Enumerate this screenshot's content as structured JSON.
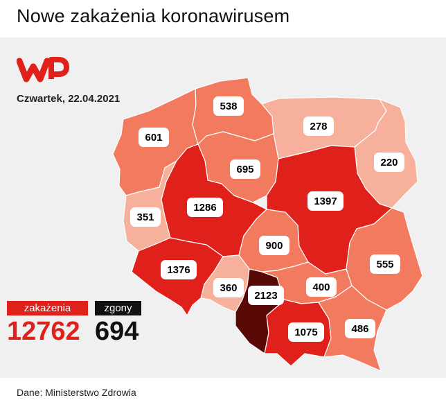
{
  "header": {
    "title": "Nowe zakażenia koronawirusem"
  },
  "info": {
    "date": "Czwartek, 22.04.2021"
  },
  "brand": {
    "accent": "#e0201b"
  },
  "legend": {
    "color_scale": [
      "#f7b09c",
      "#f4775c",
      "#e0201b",
      "#5a0a06"
    ]
  },
  "regions": [
    {
      "id": "zachodniopomorskie",
      "value": "601",
      "color": "#f27a5f"
    },
    {
      "id": "pomorskie",
      "value": "538",
      "color": "#f27a5f"
    },
    {
      "id": "warminsko-mazurskie",
      "value": "278",
      "color": "#f7b09c"
    },
    {
      "id": "podlaskie",
      "value": "220",
      "color": "#f7b09c"
    },
    {
      "id": "kujawsko-pomorskie",
      "value": "695",
      "color": "#f27a5f"
    },
    {
      "id": "lubuskie",
      "value": "351",
      "color": "#f7b09c"
    },
    {
      "id": "wielkopolskie",
      "value": "1286",
      "color": "#e0201b"
    },
    {
      "id": "mazowieckie",
      "value": "1397",
      "color": "#e0201b"
    },
    {
      "id": "lodzkie",
      "value": "900",
      "color": "#f27a5f"
    },
    {
      "id": "lubelskie",
      "value": "555",
      "color": "#f27a5f"
    },
    {
      "id": "dolnoslaskie",
      "value": "1376",
      "color": "#e0201b"
    },
    {
      "id": "opolskie",
      "value": "360",
      "color": "#f7b09c"
    },
    {
      "id": "slaskie",
      "value": "2123",
      "color": "#5a0a06"
    },
    {
      "id": "swietokrzyskie",
      "value": "400",
      "color": "#f27a5f"
    },
    {
      "id": "malopolskie",
      "value": "1075",
      "color": "#e0201b"
    },
    {
      "id": "podkarpackie",
      "value": "486",
      "color": "#f27a5f"
    }
  ],
  "stats": {
    "infections_label": "zakażenia",
    "infections_value": "12762",
    "deaths_label": "zgony",
    "deaths_value": "694"
  },
  "footer": {
    "source": "Dane: Ministerstwo Zdrowia"
  }
}
